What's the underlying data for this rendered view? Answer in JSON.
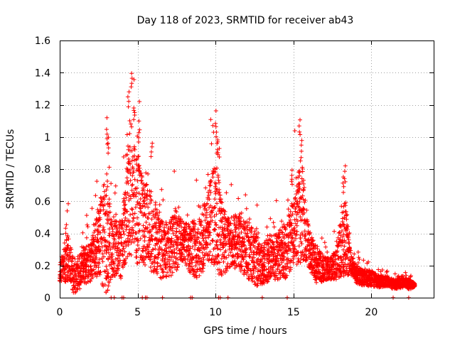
{
  "chart_data": {
    "type": "scatter",
    "title": "Day 118 of 2023, SRMTID for receiver ab43",
    "xlabel": "GPS time / hours",
    "ylabel": "SRMTID / TECUs",
    "xlim": [
      0,
      24
    ],
    "ylim": [
      0,
      1.6
    ],
    "grid": true,
    "marker": "+",
    "series_color": "#ff0000",
    "x_ticks": [
      0,
      5,
      10,
      15,
      20
    ],
    "x_tick_labels": [
      "0",
      "5",
      "10",
      "15",
      "20"
    ],
    "y_ticks": [
      0,
      0.2,
      0.4,
      0.6,
      0.8,
      1.0,
      1.2,
      1.4,
      1.6
    ],
    "y_tick_labels": [
      "0",
      "0.2",
      "0.4",
      "0.6",
      "0.8",
      "1",
      "1.2",
      "1.4",
      "1.6"
    ],
    "profile_note": "approximate envelope of the dense scatter (hour, typical value, upper spread)",
    "profile": [
      [
        0.0,
        0.15,
        0.1
      ],
      [
        0.5,
        0.25,
        0.25
      ],
      [
        1.0,
        0.1,
        0.15
      ],
      [
        1.5,
        0.2,
        0.2
      ],
      [
        2.0,
        0.22,
        0.2
      ],
      [
        2.5,
        0.35,
        0.35
      ],
      [
        3.0,
        0.4,
        0.65
      ],
      [
        3.3,
        0.3,
        0.3
      ],
      [
        4.0,
        0.3,
        0.3
      ],
      [
        4.5,
        0.7,
        0.7
      ],
      [
        5.0,
        0.55,
        0.6
      ],
      [
        5.5,
        0.45,
        0.45
      ],
      [
        6.0,
        0.4,
        0.4
      ],
      [
        6.5,
        0.3,
        0.3
      ],
      [
        7.0,
        0.3,
        0.3
      ],
      [
        7.5,
        0.35,
        0.3
      ],
      [
        8.0,
        0.35,
        0.2
      ],
      [
        8.5,
        0.3,
        0.3
      ],
      [
        9.0,
        0.3,
        0.3
      ],
      [
        9.5,
        0.45,
        0.35
      ],
      [
        10.0,
        0.5,
        0.6
      ],
      [
        10.5,
        0.35,
        0.35
      ],
      [
        11.0,
        0.35,
        0.25
      ],
      [
        11.5,
        0.35,
        0.3
      ],
      [
        12.0,
        0.3,
        0.3
      ],
      [
        12.5,
        0.25,
        0.3
      ],
      [
        13.0,
        0.2,
        0.2
      ],
      [
        13.5,
        0.25,
        0.25
      ],
      [
        14.0,
        0.25,
        0.25
      ],
      [
        14.5,
        0.3,
        0.3
      ],
      [
        15.0,
        0.4,
        0.35
      ],
      [
        15.5,
        0.55,
        0.55
      ],
      [
        16.0,
        0.3,
        0.2
      ],
      [
        16.5,
        0.2,
        0.2
      ],
      [
        17.0,
        0.18,
        0.12
      ],
      [
        17.5,
        0.18,
        0.12
      ],
      [
        18.0,
        0.3,
        0.3
      ],
      [
        18.3,
        0.4,
        0.45
      ],
      [
        18.7,
        0.2,
        0.1
      ],
      [
        19.0,
        0.15,
        0.1
      ],
      [
        19.5,
        0.12,
        0.08
      ],
      [
        20.0,
        0.12,
        0.08
      ],
      [
        20.5,
        0.1,
        0.06
      ],
      [
        21.0,
        0.1,
        0.05
      ],
      [
        21.5,
        0.08,
        0.05
      ],
      [
        22.0,
        0.1,
        0.06
      ],
      [
        22.5,
        0.08,
        0.05
      ],
      [
        22.8,
        0.08,
        0.02
      ]
    ],
    "peaks": [
      {
        "x": 3.0,
        "y": 1.05
      },
      {
        "x": 3.1,
        "y": 1.0
      },
      {
        "x": 4.4,
        "y": 1.29
      },
      {
        "x": 4.6,
        "y": 1.41
      },
      {
        "x": 4.8,
        "y": 1.2
      },
      {
        "x": 5.1,
        "y": 1.06
      },
      {
        "x": 5.9,
        "y": 0.98
      },
      {
        "x": 10.0,
        "y": 1.1
      },
      {
        "x": 10.1,
        "y": 1.0
      },
      {
        "x": 10.2,
        "y": 0.97
      },
      {
        "x": 15.4,
        "y": 1.11
      },
      {
        "x": 15.5,
        "y": 0.95
      },
      {
        "x": 18.3,
        "y": 0.82
      },
      {
        "x": 18.2,
        "y": 0.76
      },
      {
        "x": 14.9,
        "y": 0.8
      }
    ],
    "zero_points_x": [
      3.3,
      3.5,
      4.0,
      4.1,
      5.3,
      5.5,
      5.6,
      6.6,
      8.4,
      8.5,
      10.2,
      10.3,
      10.8,
      13.0,
      14.6,
      21.4,
      22.4
    ]
  }
}
